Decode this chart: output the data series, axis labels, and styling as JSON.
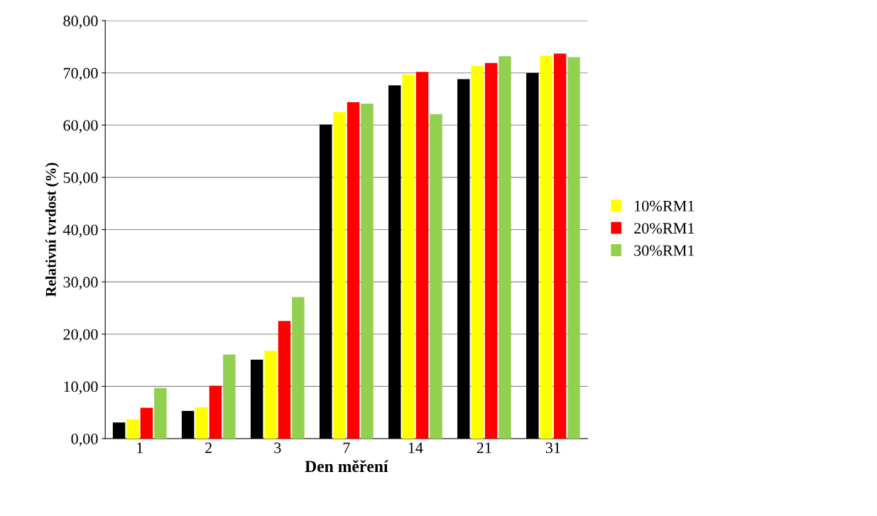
{
  "chart_data": {
    "type": "bar",
    "xlabel": "Den měření",
    "ylabel": "Relativní tvrdost (%)",
    "categories": [
      "1",
      "2",
      "3",
      "7",
      "14",
      "21",
      "31"
    ],
    "series": [
      {
        "color": "#000000",
        "values": [
          3.1,
          5.3,
          15.1,
          60.1,
          67.6,
          68.8,
          70.0
        ]
      },
      {
        "name": "10%RM1",
        "color": "#ffff00",
        "values": [
          3.7,
          6.0,
          16.8,
          62.5,
          69.7,
          71.3,
          73.3
        ]
      },
      {
        "name": "20%RM1",
        "color": "#ff0000",
        "values": [
          5.9,
          10.1,
          22.5,
          64.4,
          70.2,
          71.9,
          73.7
        ]
      },
      {
        "name": "30%RM1",
        "color": "#92d050",
        "values": [
          9.7,
          16.1,
          27.1,
          64.1,
          62.1,
          73.2,
          73.0
        ]
      }
    ],
    "ylim": [
      0,
      80
    ],
    "yticks": [
      {
        "value": 0,
        "label": "0,00"
      },
      {
        "value": 10,
        "label": "10,00"
      },
      {
        "value": 20,
        "label": "20,00"
      },
      {
        "value": 30,
        "label": "30,00"
      },
      {
        "value": 40,
        "label": "40,00"
      },
      {
        "value": 50,
        "label": "50,00"
      },
      {
        "value": 60,
        "label": "60,00"
      },
      {
        "value": 70,
        "label": "70,00"
      },
      {
        "value": 80,
        "label": "80,00"
      }
    ],
    "grid": "y",
    "legend": "right"
  }
}
